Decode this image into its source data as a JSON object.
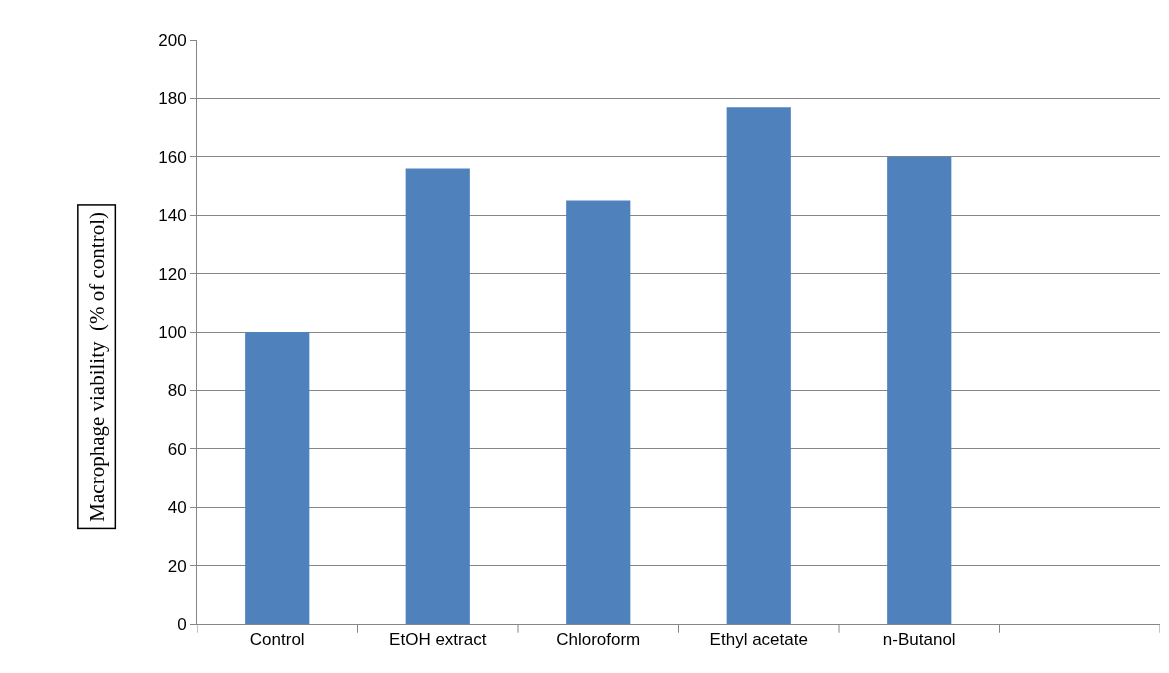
{
  "chart_data": {
    "type": "bar",
    "ylabel": "Macrophage viability  (% of control)",
    "categories": [
      "Control",
      "EtOH extract",
      "Chloroform",
      "Ethyl acetate",
      "n-Butanol",
      null
    ],
    "values": [
      100,
      156,
      145,
      177,
      160,
      null
    ],
    "color": "#4f81bd",
    "ylim": [
      0,
      200
    ],
    "yticks": [
      0,
      20,
      40,
      60,
      80,
      100,
      120,
      140,
      160,
      180,
      200
    ],
    "grid": "y"
  }
}
